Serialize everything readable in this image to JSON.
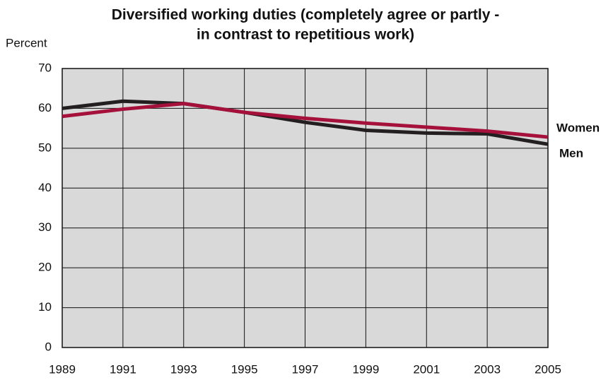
{
  "chart_data": {
    "type": "line",
    "title": [
      "Diversified working duties (completely agree or partly -",
      "in contrast to repetitious work)"
    ],
    "y_label": "Percent",
    "x": [
      1989,
      1991,
      1993,
      1995,
      1997,
      1999,
      2001,
      2003,
      2005
    ],
    "series": [
      {
        "name": "Women",
        "color": "#a6113c",
        "values": [
          58,
          59.8,
          61.2,
          59,
          57.5,
          56.3,
          55.3,
          54.3,
          52.8
        ]
      },
      {
        "name": "Men",
        "color": "#231f20",
        "values": [
          60,
          61.8,
          61.2,
          59,
          56.5,
          54.5,
          53.8,
          53.6,
          51
        ]
      }
    ],
    "xlim": [
      1989,
      2005
    ],
    "xticks": [
      1989,
      1991,
      1993,
      1995,
      1997,
      1999,
      2001,
      2003,
      2005
    ],
    "ylim": [
      0,
      70
    ],
    "yticks": [
      0,
      10,
      20,
      30,
      40,
      50,
      60,
      70
    ],
    "grid": true,
    "background": "#d9d9d9"
  }
}
